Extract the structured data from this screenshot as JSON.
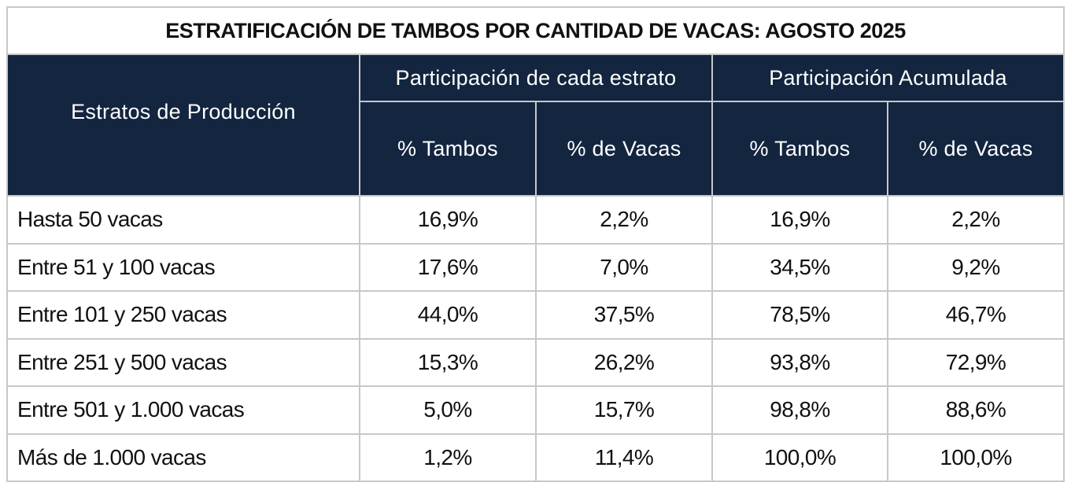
{
  "title": "ESTRATIFICACIÓN DE TAMBOS POR CANTIDAD DE VACAS: AGOSTO 2025",
  "header": {
    "strata_label": "Estratos de Producción",
    "group_each": "Participación de cada estrato",
    "group_cumulative": "Participación Acumulada",
    "col_tambos": "% Tambos",
    "col_vacas": "% de Vacas"
  },
  "rows": [
    {
      "label": "Hasta 50 vacas",
      "tambos": "16,9%",
      "vacas": "2,2%",
      "acum_tambos": "16,9%",
      "acum_vacas": "2,2%"
    },
    {
      "label": "Entre 51 y 100 vacas",
      "tambos": "17,6%",
      "vacas": "7,0%",
      "acum_tambos": "34,5%",
      "acum_vacas": "9,2%"
    },
    {
      "label": "Entre 101 y 250 vacas",
      "tambos": "44,0%",
      "vacas": "37,5%",
      "acum_tambos": "78,5%",
      "acum_vacas": "46,7%"
    },
    {
      "label": "Entre 251 y 500 vacas",
      "tambos": "15,3%",
      "vacas": "26,2%",
      "acum_tambos": "93,8%",
      "acum_vacas": "72,9%"
    },
    {
      "label": "Entre 501 y 1.000 vacas",
      "tambos": "5,0%",
      "vacas": "15,7%",
      "acum_tambos": "98,8%",
      "acum_vacas": "88,6%"
    },
    {
      "label": "Más de 1.000 vacas",
      "tambos": "1,2%",
      "vacas": "11,4%",
      "acum_tambos": "100,0%",
      "acum_vacas": "100,0%"
    }
  ]
}
